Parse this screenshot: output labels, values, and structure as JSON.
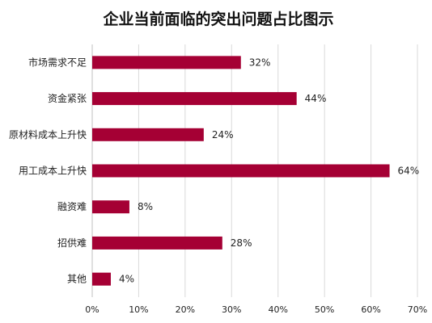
{
  "chart_data": {
    "type": "bar",
    "orientation": "horizontal",
    "title": "企业当前面临的突出问题占比图示",
    "categories": [
      "市场需求不足",
      "资金紧张",
      "原材料成本上升快",
      "用工成本上升快",
      "融资难",
      "招供难",
      "其他"
    ],
    "values": [
      32,
      44,
      24,
      64,
      8,
      28,
      4
    ],
    "value_labels": [
      "32%",
      "44%",
      "24%",
      "64%",
      "8%",
      "28%",
      "4%"
    ],
    "x_ticks": [
      "0%",
      "10%",
      "20%",
      "30%",
      "40%",
      "50%",
      "60%",
      "70%"
    ],
    "xlim": [
      0,
      70
    ],
    "grid": true,
    "legend": "none",
    "bar_color": "#A50034"
  }
}
